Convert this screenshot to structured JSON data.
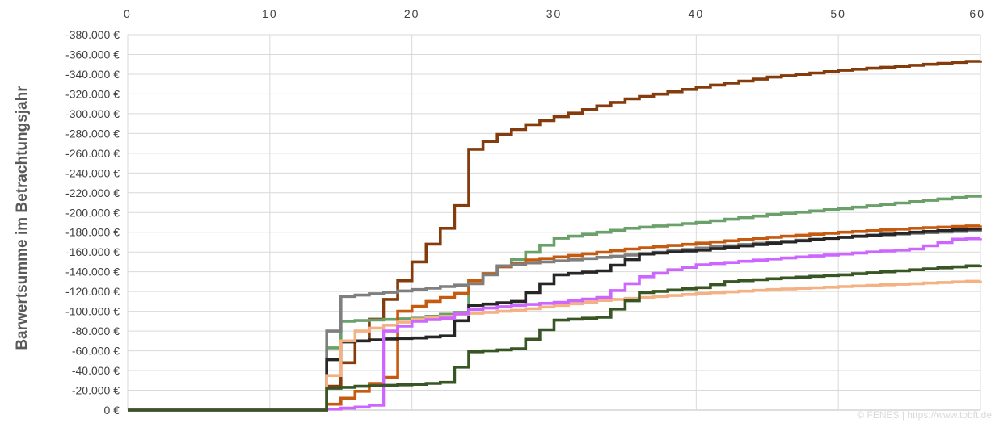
{
  "chart_data": {
    "type": "line",
    "ylabel": "Barwertsumme im Betrachtungsjahr",
    "xlim": [
      0,
      60
    ],
    "ylim": [
      0,
      -380000
    ],
    "x_ticks": [
      "0",
      "10",
      "20",
      "30",
      "40",
      "50",
      "60"
    ],
    "y_ticks": [
      "-380.000 €",
      "-360.000 €",
      "-340.000 €",
      "-320.000 €",
      "-300.000 €",
      "-280.000 €",
      "-260.000 €",
      "-240.000 €",
      "-220.000 €",
      "-200.000 €",
      "-180.000 €",
      "-160.000 €",
      "-140.000 €",
      "-120.000 €",
      "-100.000 €",
      "-80.000 €",
      "-60.000 €",
      "-40.000 €",
      "-20.000 €",
      "0 €"
    ],
    "grid": true,
    "watermark": "© FENES | https://www.tobft.de",
    "series": [
      {
        "color": "#843C0C",
        "x": [
          0,
          13,
          14,
          15,
          16,
          17,
          18,
          19,
          20,
          21,
          22,
          23,
          24,
          25,
          26,
          27,
          28,
          29,
          30,
          35,
          40,
          45,
          50,
          55,
          60
        ],
        "values": [
          0,
          0,
          -24000,
          -48000,
          -70000,
          -92000,
          -112000,
          -131000,
          -150000,
          -168000,
          -184000,
          -207000,
          -264000,
          -272000,
          -279000,
          -284000,
          -289000,
          -293000,
          -297000,
          -315000,
          -327000,
          -337000,
          -344000,
          -349000,
          -354000
        ]
      },
      {
        "color": "#6AA06A",
        "x": [
          0,
          13,
          14,
          15,
          20,
          21,
          22,
          23,
          24,
          30,
          35,
          40,
          45,
          50,
          55,
          60
        ],
        "values": [
          0,
          0,
          -63000,
          -90000,
          -93000,
          -95000,
          -97000,
          -99000,
          -131000,
          -174000,
          -184000,
          -190000,
          -198000,
          -204000,
          -211000,
          -218000
        ]
      },
      {
        "color": "#C55A11",
        "x": [
          0,
          13,
          14,
          15,
          16,
          17,
          18,
          19,
          20,
          21,
          22,
          23,
          24,
          26,
          28,
          30,
          35,
          40,
          45,
          50,
          55,
          60
        ],
        "values": [
          0,
          0,
          -6000,
          -12000,
          -19000,
          -27000,
          -33000,
          -100000,
          -105000,
          -110000,
          -114000,
          -118000,
          -131000,
          -145000,
          -152000,
          -155000,
          -163000,
          -169000,
          -175000,
          -180000,
          -184000,
          -187000
        ]
      },
      {
        "color": "#7F7F7F",
        "x": [
          0,
          13,
          14,
          15,
          20,
          22,
          24,
          26,
          28,
          30,
          35,
          40,
          45,
          50,
          55,
          60
        ],
        "values": [
          0,
          0,
          -80000,
          -115000,
          -122000,
          -125000,
          -128000,
          -146000,
          -149000,
          -151000,
          -157000,
          -164000,
          -170000,
          -175000,
          -179000,
          -182000
        ]
      },
      {
        "color": "#262626",
        "x": [
          0,
          13,
          14,
          15,
          16,
          18,
          20,
          22,
          24,
          27,
          30,
          33,
          36,
          40,
          45,
          50,
          55,
          60
        ],
        "values": [
          0,
          0,
          -51000,
          -69000,
          -70000,
          -72000,
          -73000,
          -75000,
          -106000,
          -110000,
          -137000,
          -141000,
          -158000,
          -162000,
          -169000,
          -175000,
          -180000,
          -184000
        ]
      },
      {
        "color": "#F4B183",
        "x": [
          0,
          13,
          15,
          16,
          18,
          20,
          22,
          24,
          27,
          30,
          33,
          36,
          40,
          45,
          50,
          55,
          60
        ],
        "values": [
          0,
          0,
          -70000,
          -80000,
          -86000,
          -92000,
          -95000,
          -98000,
          -101000,
          -106000,
          -111000,
          -114000,
          -118000,
          -122000,
          -125000,
          -128000,
          -131000
        ]
      },
      {
        "color": "#CC66FF",
        "x": [
          0,
          13,
          15,
          16,
          17,
          18,
          19,
          20,
          22,
          24,
          27,
          30,
          33,
          36,
          38,
          40,
          45,
          50,
          55,
          58,
          60
        ],
        "values": [
          0,
          0,
          -2000,
          -3000,
          -5000,
          -80000,
          -85000,
          -90000,
          -93000,
          -102000,
          -106000,
          -109000,
          -114000,
          -135000,
          -142000,
          -147000,
          -153000,
          -158000,
          -163000,
          -173000,
          -174000
        ]
      },
      {
        "color": "#375623",
        "x": [
          0,
          13,
          14,
          16,
          18,
          20,
          22,
          24,
          27,
          30,
          33,
          36,
          40,
          42,
          45,
          50,
          55,
          60
        ],
        "values": [
          0,
          0,
          -22000,
          -24000,
          -25000,
          -26000,
          -28000,
          -59000,
          -62000,
          -91000,
          -94000,
          -119000,
          -124000,
          -130000,
          -133000,
          -137000,
          -142000,
          -147000
        ]
      }
    ]
  }
}
